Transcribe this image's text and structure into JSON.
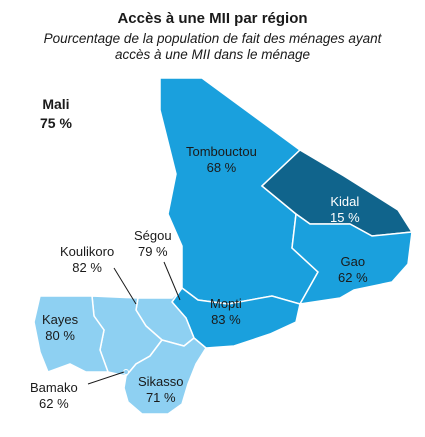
{
  "title": "Accès à une MII par région",
  "subtitle_line1": "Pourcentage de la population de fait des ménages ayant",
  "subtitle_line2": "accès à une MII dans le ménage",
  "country": {
    "name": "Mali",
    "value": "75 %"
  },
  "colors": {
    "dark": "#10648c",
    "mid": "#1aa0dd",
    "light": "#8ed0f2",
    "border": "#ffffff"
  },
  "regions": [
    {
      "name": "Tombouctou",
      "value": "68 %"
    },
    {
      "name": "Kidal",
      "value": "15 %"
    },
    {
      "name": "Gao",
      "value": "62 %"
    },
    {
      "name": "Mopti",
      "value": "83 %"
    },
    {
      "name": "Ségou",
      "value": "79 %"
    },
    {
      "name": "Koulikoro",
      "value": "82 %"
    },
    {
      "name": "Kayes",
      "value": "80 %"
    },
    {
      "name": "Sikasso",
      "value": "71 %"
    },
    {
      "name": "Bamako",
      "value": "62 %"
    }
  ]
}
